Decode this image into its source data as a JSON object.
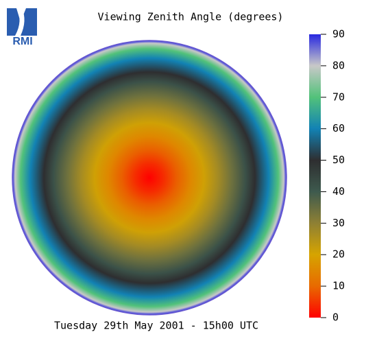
{
  "chart_data": {
    "type": "disc",
    "logo": "RMI",
    "title": "Viewing Zenith Angle (degrees)",
    "footer": "Tuesday 29th May 2001 - 15h00 UTC",
    "clim": [
      0,
      90
    ],
    "cticks": [
      0,
      10,
      20,
      30,
      40,
      50,
      60,
      70,
      80,
      90
    ],
    "colors": [
      "#ff0000",
      "#e86a00",
      "#d6a400",
      "#8e8034",
      "#3e5a4e",
      "#2e2e30",
      "#1282b4",
      "#52c27a",
      "#c8c8c8",
      "#2828e0"
    ],
    "profile": {
      "radii": [
        0,
        0.1,
        0.2,
        0.3,
        0.4,
        0.5,
        0.6,
        0.7,
        0.77,
        0.87,
        0.94,
        0.98,
        1
      ],
      "values": [
        0,
        4,
        9,
        15,
        21,
        27,
        34,
        42,
        50,
        60,
        70,
        80,
        90
      ]
    },
    "edge_color": "#6a5ad0"
  }
}
